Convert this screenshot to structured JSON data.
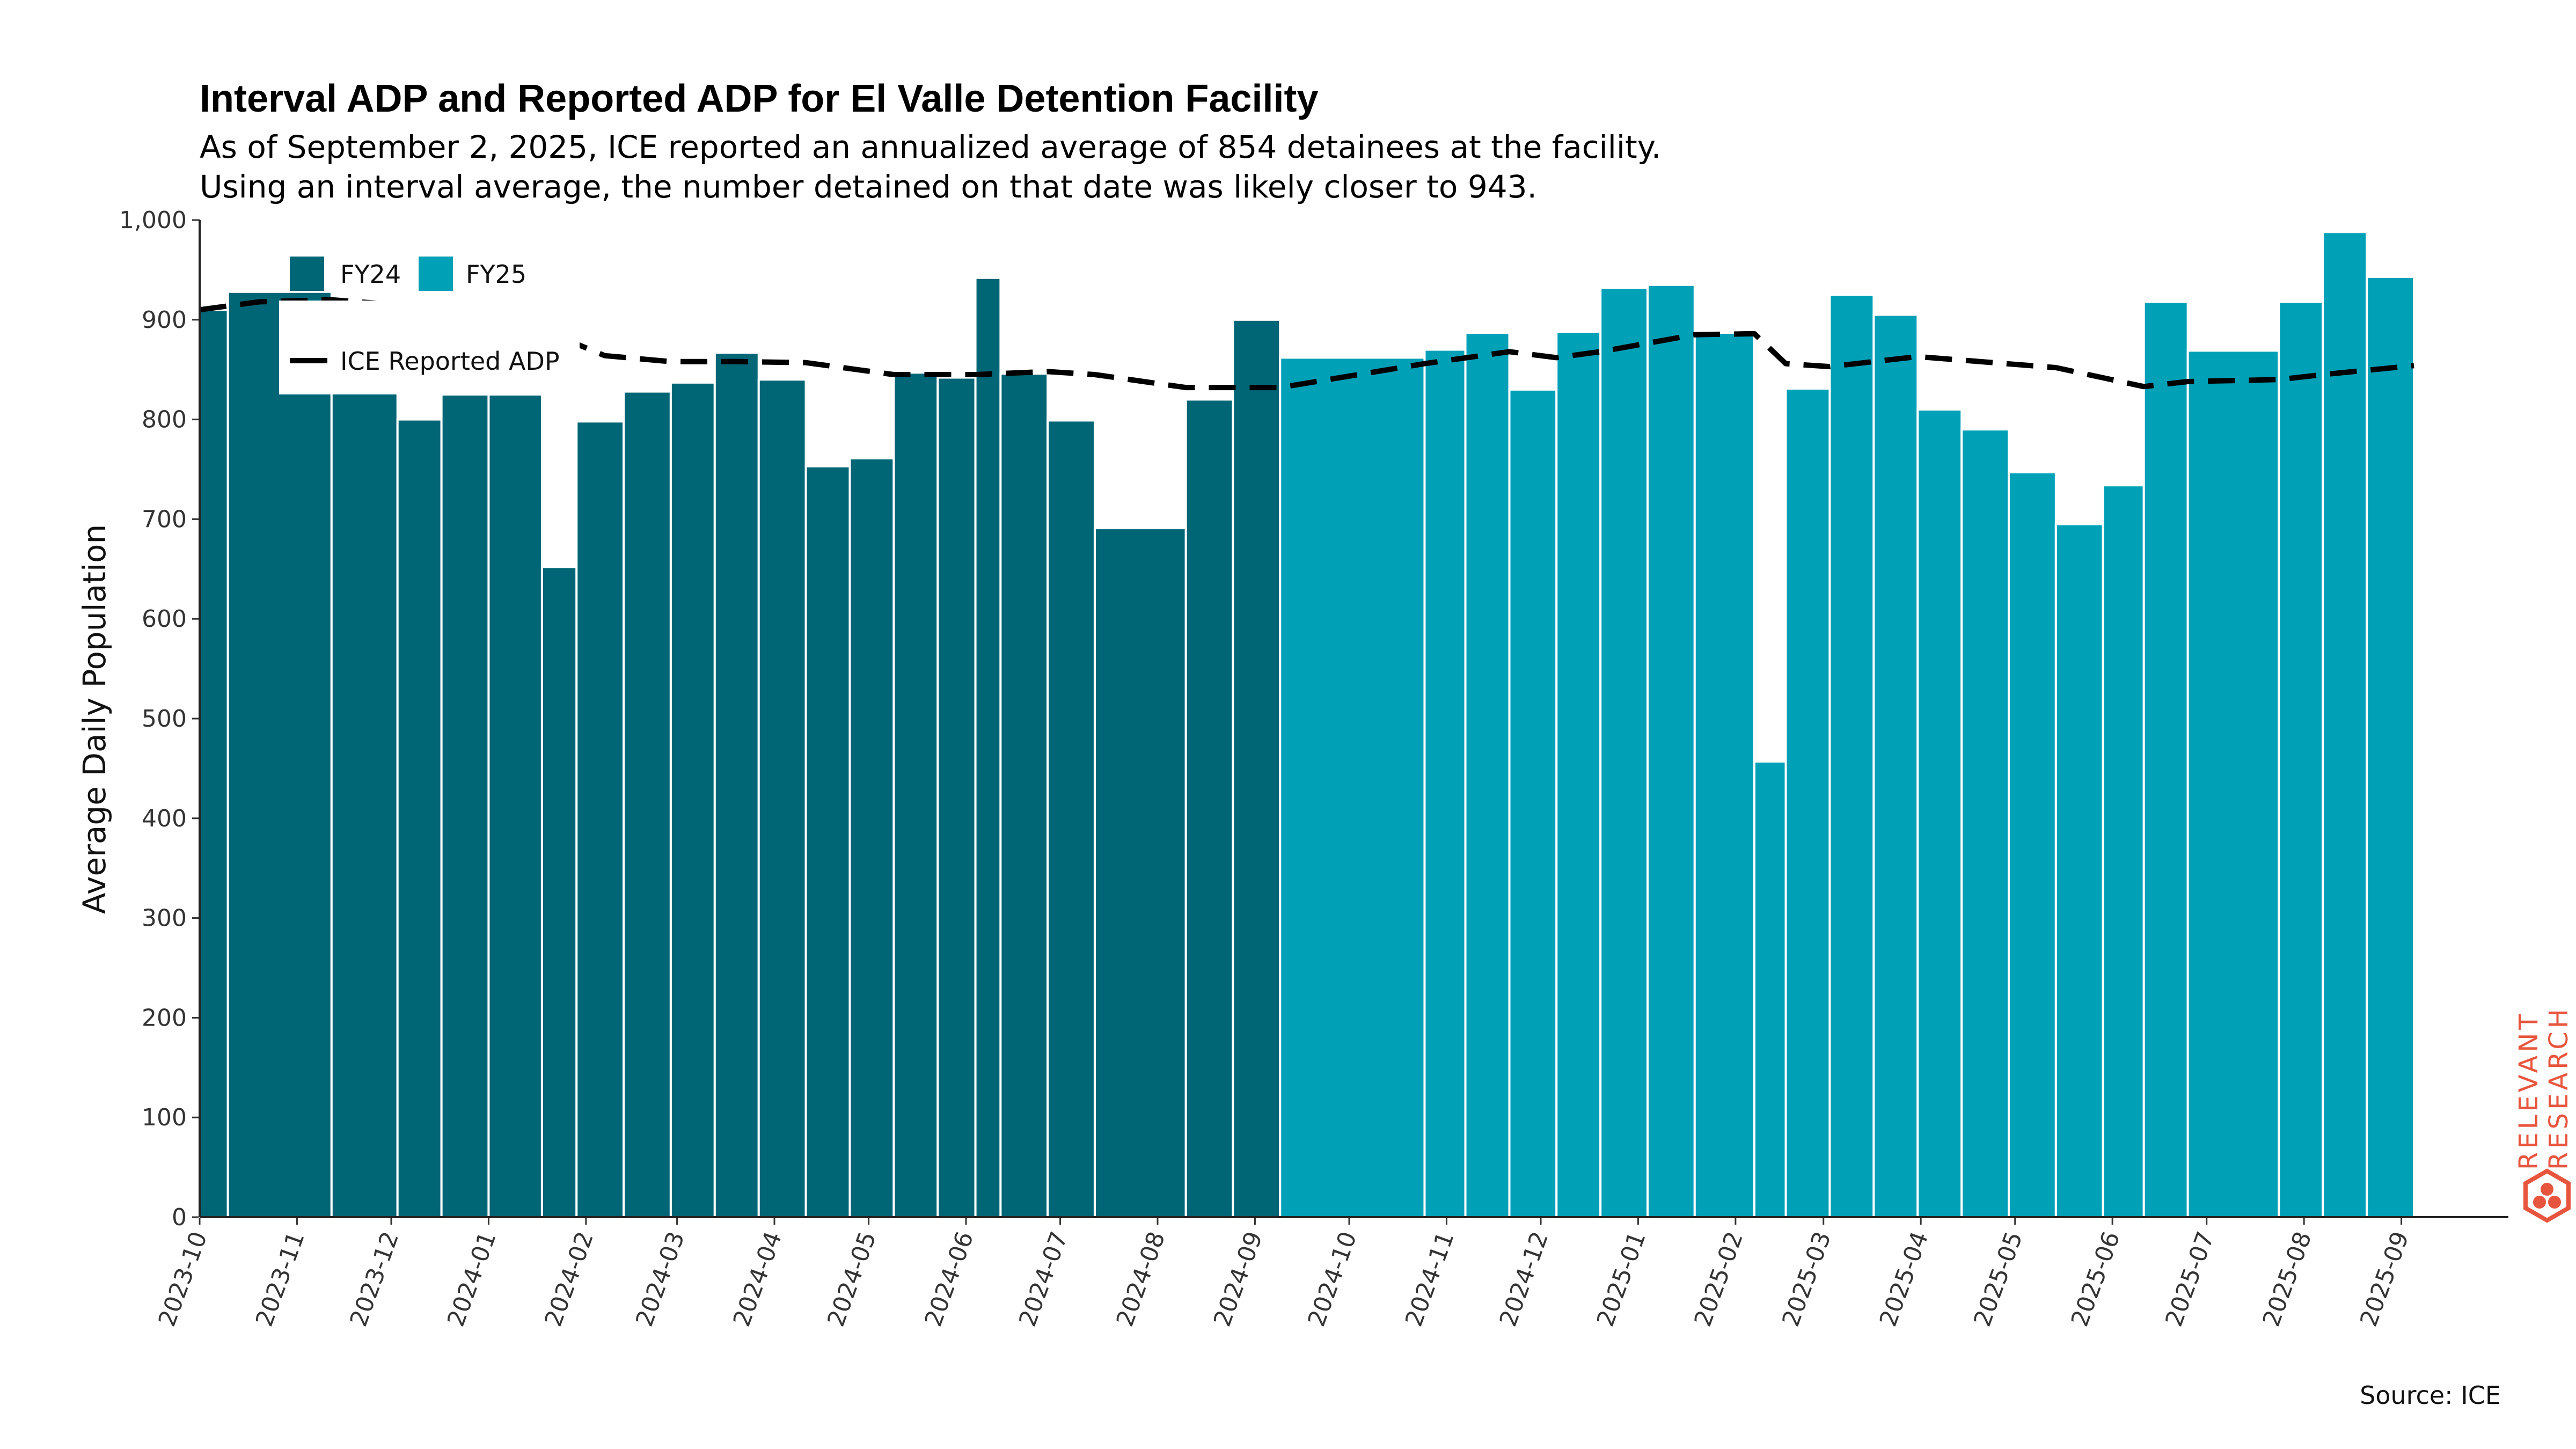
{
  "chart_data": {
    "type": "bar",
    "title": "Interval ADP and Reported ADP for El Valle Detention Facility",
    "subtitle_lines": [
      "As of September 2, 2025, ICE reported an annualized average of 854 detainees at the facility.",
      "Using an interval average, the number detained on that date was likely closer to 943."
    ],
    "ylabel": "Average Daily Population",
    "xlabel": "",
    "ylim": [
      0,
      1000
    ],
    "y_ticks": [
      0,
      100,
      200,
      300,
      400,
      500,
      600,
      700,
      800,
      900,
      1000
    ],
    "y_tick_labels": [
      "0",
      "100",
      "200",
      "300",
      "400",
      "500",
      "600",
      "700",
      "800",
      "900",
      "1,000"
    ],
    "x_ticks": [
      "2023-10",
      "2023-11",
      "2023-12",
      "2024-01",
      "2024-02",
      "2024-03",
      "2024-04",
      "2024-05",
      "2024-06",
      "2024-07",
      "2024-08",
      "2024-09",
      "2024-10",
      "2024-11",
      "2024-12",
      "2025-01",
      "2025-02",
      "2025-03",
      "2025-04",
      "2025-05",
      "2025-06",
      "2025-07",
      "2025-08",
      "2025-09"
    ],
    "grid": false,
    "legend_placement": "top-left",
    "colors": {
      "FY24": "#006575",
      "FY25": "#00a0b7",
      "reported_line": "#000000",
      "brand": "#e8553e"
    },
    "series": [
      {
        "name": "FY24",
        "bars": [
          {
            "start": "2023-10-01",
            "end": "2023-10-10",
            "value": 910
          },
          {
            "start": "2023-10-10",
            "end": "2023-11-12",
            "value": 928
          },
          {
            "start": "2023-11-12",
            "end": "2023-12-03",
            "value": 915
          },
          {
            "start": "2023-12-03",
            "end": "2023-12-17",
            "value": 800
          },
          {
            "start": "2023-12-17",
            "end": "2024-01-01",
            "value": 825
          },
          {
            "start": "2024-01-01",
            "end": "2024-01-18",
            "value": 825
          },
          {
            "start": "2024-01-18",
            "end": "2024-01-29",
            "value": 652
          },
          {
            "start": "2024-01-29",
            "end": "2024-02-13",
            "value": 798
          },
          {
            "start": "2024-02-13",
            "end": "2024-02-28",
            "value": 828
          },
          {
            "start": "2024-02-28",
            "end": "2024-03-13",
            "value": 837
          },
          {
            "start": "2024-03-13",
            "end": "2024-03-27",
            "value": 867
          },
          {
            "start": "2024-03-27",
            "end": "2024-04-11",
            "value": 840
          },
          {
            "start": "2024-04-11",
            "end": "2024-04-25",
            "value": 753
          },
          {
            "start": "2024-04-25",
            "end": "2024-05-09",
            "value": 761
          },
          {
            "start": "2024-05-09",
            "end": "2024-05-23",
            "value": 847
          },
          {
            "start": "2024-05-23",
            "end": "2024-06-04",
            "value": 842
          },
          {
            "start": "2024-06-04",
            "end": "2024-06-12",
            "value": 942
          },
          {
            "start": "2024-06-12",
            "end": "2024-06-27",
            "value": 846
          },
          {
            "start": "2024-06-27",
            "end": "2024-07-12",
            "value": 799
          },
          {
            "start": "2024-07-12",
            "end": "2024-08-10",
            "value": 691
          },
          {
            "start": "2024-08-10",
            "end": "2024-08-25",
            "value": 820
          },
          {
            "start": "2024-08-25",
            "end": "2024-09-09",
            "value": 900
          }
        ]
      },
      {
        "name": "FY25",
        "bars": [
          {
            "start": "2024-09-09",
            "end": "2024-10-25",
            "value": 862
          },
          {
            "start": "2024-10-25",
            "end": "2024-11-07",
            "value": 870
          },
          {
            "start": "2024-11-07",
            "end": "2024-11-21",
            "value": 887
          },
          {
            "start": "2024-11-21",
            "end": "2024-12-06",
            "value": 830
          },
          {
            "start": "2024-12-06",
            "end": "2024-12-20",
            "value": 888
          },
          {
            "start": "2024-12-20",
            "end": "2025-01-04",
            "value": 932
          },
          {
            "start": "2025-01-04",
            "end": "2025-01-19",
            "value": 935
          },
          {
            "start": "2025-01-19",
            "end": "2025-02-07",
            "value": 887
          },
          {
            "start": "2025-02-07",
            "end": "2025-02-17",
            "value": 457
          },
          {
            "start": "2025-02-17",
            "end": "2025-03-03",
            "value": 831
          },
          {
            "start": "2025-03-03",
            "end": "2025-03-17",
            "value": 925
          },
          {
            "start": "2025-03-17",
            "end": "2025-03-31",
            "value": 905
          },
          {
            "start": "2025-03-31",
            "end": "2025-04-14",
            "value": 810
          },
          {
            "start": "2025-04-14",
            "end": "2025-04-29",
            "value": 790
          },
          {
            "start": "2025-04-29",
            "end": "2025-05-14",
            "value": 747
          },
          {
            "start": "2025-05-14",
            "end": "2025-05-29",
            "value": 695
          },
          {
            "start": "2025-05-29",
            "end": "2025-06-11",
            "value": 734
          },
          {
            "start": "2025-06-11",
            "end": "2025-06-25",
            "value": 918
          },
          {
            "start": "2025-06-25",
            "end": "2025-07-24",
            "value": 869
          },
          {
            "start": "2025-07-24",
            "end": "2025-08-07",
            "value": 918
          },
          {
            "start": "2025-08-07",
            "end": "2025-08-21",
            "value": 988
          },
          {
            "start": "2025-08-21",
            "end": "2025-09-05",
            "value": 943
          }
        ]
      },
      {
        "name": "ICE Reported ADP",
        "type": "line",
        "style": "dashed",
        "points": [
          {
            "x": "2023-10-01",
            "y": 910
          },
          {
            "x": "2023-10-20",
            "y": 918
          },
          {
            "x": "2023-11-12",
            "y": 920
          },
          {
            "x": "2023-12-03",
            "y": 915
          },
          {
            "x": "2023-12-17",
            "y": 903
          },
          {
            "x": "2024-01-01",
            "y": 897
          },
          {
            "x": "2024-01-18",
            "y": 890
          },
          {
            "x": "2024-02-07",
            "y": 864
          },
          {
            "x": "2024-02-28",
            "y": 858
          },
          {
            "x": "2024-03-20",
            "y": 858
          },
          {
            "x": "2024-04-11",
            "y": 857
          },
          {
            "x": "2024-05-09",
            "y": 845
          },
          {
            "x": "2024-06-04",
            "y": 845
          },
          {
            "x": "2024-06-27",
            "y": 848
          },
          {
            "x": "2024-07-12",
            "y": 845
          },
          {
            "x": "2024-08-10",
            "y": 832
          },
          {
            "x": "2024-09-09",
            "y": 832
          },
          {
            "x": "2024-10-25",
            "y": 856
          },
          {
            "x": "2024-11-21",
            "y": 868
          },
          {
            "x": "2024-12-06",
            "y": 862
          },
          {
            "x": "2024-12-20",
            "y": 868
          },
          {
            "x": "2025-01-19",
            "y": 885
          },
          {
            "x": "2025-02-07",
            "y": 886
          },
          {
            "x": "2025-02-17",
            "y": 856
          },
          {
            "x": "2025-03-03",
            "y": 853
          },
          {
            "x": "2025-03-31",
            "y": 863
          },
          {
            "x": "2025-05-14",
            "y": 852
          },
          {
            "x": "2025-06-11",
            "y": 833
          },
          {
            "x": "2025-06-25",
            "y": 838
          },
          {
            "x": "2025-07-24",
            "y": 840
          },
          {
            "x": "2025-08-07",
            "y": 845
          },
          {
            "x": "2025-09-05",
            "y": 854
          }
        ]
      }
    ],
    "source": "Source: ICE",
    "brand": {
      "line1": "RELEVANT",
      "line2": "RESEARCH"
    }
  }
}
